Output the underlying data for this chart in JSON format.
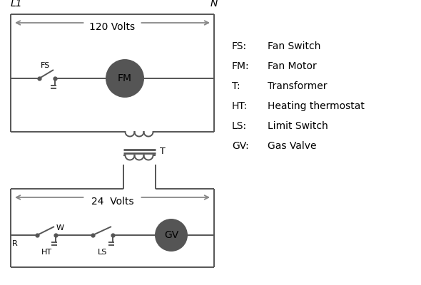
{
  "background_color": "#ffffff",
  "line_color": "#555555",
  "text_color": "#000000",
  "L1_label": "L1",
  "N_label": "N",
  "volts120": "120 Volts",
  "volts24": "24  Volts",
  "T_label": "T",
  "R_label": "R",
  "W_label": "W",
  "HT_label": "HT",
  "LS_label": "LS",
  "FS_label": "FS",
  "FM_label": "FM",
  "GV_label": "GV",
  "legend_items": [
    [
      "FS:",
      "Fan Switch"
    ],
    [
      "FM:",
      "Fan Motor"
    ],
    [
      "T:",
      "Transformer"
    ],
    [
      "HT:",
      "Heating thermostat"
    ],
    [
      "LS:",
      "Limit Switch"
    ],
    [
      "GV:",
      "Gas Valve"
    ]
  ]
}
